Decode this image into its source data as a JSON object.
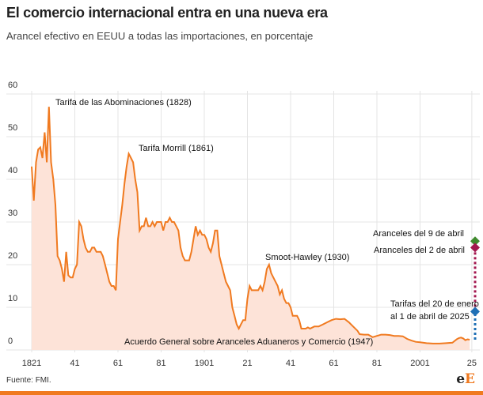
{
  "title": "El comercio internacional entra en una nueva era",
  "subtitle": "Arancel efectivo en EEUU a todas las importaciones, en porcentaje",
  "source": "Fuente: FMI.",
  "logo": "eE",
  "colors": {
    "line": "#f07a20",
    "fill": "#fde3d8",
    "blue": "#1f6fb5",
    "crimson": "#a3174f",
    "green": "#3f8a2e",
    "grid": "#e4e4e4"
  },
  "chart_data": {
    "type": "area",
    "title": "El comercio internacional entra en una nueva era",
    "ylim": [
      0,
      60
    ],
    "xlim": [
      1821,
      2025
    ],
    "grid": true,
    "yticks": [
      "0",
      "10",
      "20",
      "30",
      "40",
      "50",
      "60"
    ],
    "xticks": [
      {
        "year": 1821,
        "label": "1821"
      },
      {
        "year": 1841,
        "label": "41"
      },
      {
        "year": 1861,
        "label": "61"
      },
      {
        "year": 1881,
        "label": "81"
      },
      {
        "year": 1901,
        "label": "1901"
      },
      {
        "year": 1921,
        "label": "21"
      },
      {
        "year": 1941,
        "label": "41"
      },
      {
        "year": 1961,
        "label": "61"
      },
      {
        "year": 1981,
        "label": "81"
      },
      {
        "year": 2001,
        "label": "2001"
      },
      {
        "year": 2025,
        "label": "25"
      }
    ],
    "x": [
      1821,
      1822,
      1823,
      1824,
      1825,
      1826,
      1827,
      1828,
      1829,
      1830,
      1831,
      1832,
      1833,
      1834,
      1835,
      1836,
      1837,
      1838,
      1839,
      1840,
      1841,
      1842,
      1843,
      1844,
      1845,
      1846,
      1847,
      1848,
      1849,
      1850,
      1851,
      1852,
      1853,
      1854,
      1855,
      1856,
      1857,
      1858,
      1859,
      1860,
      1861,
      1862,
      1863,
      1864,
      1865,
      1866,
      1867,
      1868,
      1869,
      1870,
      1871,
      1872,
      1873,
      1874,
      1875,
      1876,
      1877,
      1878,
      1879,
      1880,
      1881,
      1882,
      1883,
      1884,
      1885,
      1886,
      1887,
      1888,
      1889,
      1890,
      1891,
      1892,
      1893,
      1894,
      1895,
      1896,
      1897,
      1898,
      1899,
      1900,
      1901,
      1902,
      1903,
      1904,
      1905,
      1906,
      1907,
      1908,
      1909,
      1910,
      1911,
      1912,
      1913,
      1914,
      1915,
      1916,
      1917,
      1918,
      1919,
      1920,
      1921,
      1922,
      1923,
      1924,
      1925,
      1926,
      1927,
      1928,
      1929,
      1930,
      1931,
      1932,
      1933,
      1934,
      1935,
      1936,
      1937,
      1938,
      1939,
      1940,
      1941,
      1942,
      1943,
      1944,
      1945,
      1946,
      1947,
      1948,
      1949,
      1950,
      1952,
      1954,
      1956,
      1958,
      1960,
      1962,
      1964,
      1966,
      1968,
      1970,
      1972,
      1973,
      1975,
      1977,
      1979,
      1981,
      1983,
      1985,
      1987,
      1989,
      1991,
      1993,
      1995,
      1997,
      1999,
      2001,
      2004,
      2007,
      2010,
      2013,
      2016,
      2018,
      2019,
      2020,
      2021,
      2022,
      2023,
      2024
    ],
    "values": [
      43,
      35,
      44,
      47,
      47.5,
      45,
      51,
      44,
      57,
      44,
      40,
      34,
      22,
      21,
      19,
      16,
      23,
      17.5,
      17,
      17,
      19,
      20,
      30,
      29,
      26,
      24,
      23,
      23,
      24,
      24,
      23,
      23,
      23,
      22,
      20,
      18,
      16,
      15,
      15,
      14,
      26,
      30,
      34,
      39,
      43,
      46,
      45,
      44,
      40,
      37,
      28,
      29,
      29,
      31,
      29,
      29,
      30,
      29,
      30,
      30,
      30,
      28,
      30,
      30,
      31,
      30,
      30,
      29,
      28,
      24,
      22,
      21,
      21,
      21,
      23,
      26,
      29,
      27,
      28,
      27,
      27,
      26,
      24,
      23,
      25,
      28,
      28,
      22,
      20,
      18,
      16,
      15,
      14,
      10,
      8,
      6,
      5,
      6,
      7,
      7,
      12,
      15,
      14,
      14,
      14,
      14,
      15,
      14,
      16,
      19,
      20,
      18,
      17,
      16,
      15,
      13,
      14,
      12,
      11,
      11,
      10,
      8,
      8,
      8,
      7,
      5,
      5,
      5,
      5.3,
      5,
      5.5,
      5.5,
      6,
      6.5,
      7,
      7.3,
      7.2,
      7.3,
      6.5,
      5.5,
      4.5,
      3.7,
      3.6,
      3.6,
      3,
      3.3,
      3.6,
      3.6,
      3.5,
      3.3,
      3.3,
      3.2,
      2.6,
      2.2,
      1.9,
      1.8,
      1.6,
      1.5,
      1.5,
      1.6,
      1.7,
      2.5,
      2.8,
      2.9,
      2.7,
      2.3,
      2.5,
      2.4
    ],
    "markers": [
      {
        "label": "Aranceles del 9 de abril",
        "value": 25.5,
        "color": "#3f8a2e"
      },
      {
        "label": "Aranceles del 2 de abril",
        "value": 24,
        "color": "#a3174f"
      },
      {
        "label_lines": [
          "Tarifas del 20 de enero",
          "al 1 de abril de 2025"
        ],
        "value": 9,
        "color": "#1f6fb5"
      }
    ],
    "annotations": [
      "Tarifa de las Abominaciones (1828)",
      "Tarifa Morrill (1861)",
      "Smoot-Hawley (1930)",
      "Acuerdo General sobre Aranceles Aduaneros y Comercio (1947)"
    ]
  }
}
